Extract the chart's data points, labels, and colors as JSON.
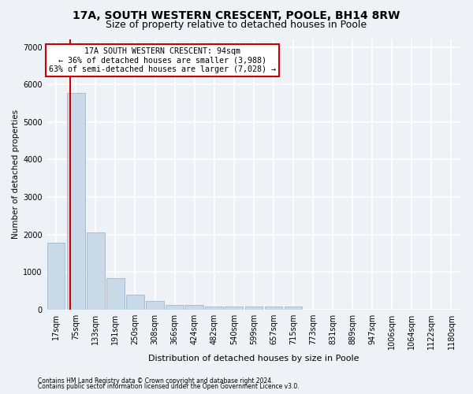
{
  "title1": "17A, SOUTH WESTERN CRESCENT, POOLE, BH14 8RW",
  "title2": "Size of property relative to detached houses in Poole",
  "xlabel": "Distribution of detached houses by size in Poole",
  "ylabel": "Number of detached properties",
  "footnote1": "Contains HM Land Registry data © Crown copyright and database right 2024.",
  "footnote2": "Contains public sector information licensed under the Open Government Licence v3.0.",
  "bar_labels": [
    "17sqm",
    "75sqm",
    "133sqm",
    "191sqm",
    "250sqm",
    "308sqm",
    "366sqm",
    "424sqm",
    "482sqm",
    "540sqm",
    "599sqm",
    "657sqm",
    "715sqm",
    "773sqm",
    "831sqm",
    "889sqm",
    "947sqm",
    "1006sqm",
    "1064sqm",
    "1122sqm",
    "1180sqm"
  ],
  "bar_values": [
    1780,
    5780,
    2060,
    840,
    390,
    220,
    130,
    120,
    85,
    80,
    80,
    80,
    80,
    0,
    0,
    0,
    0,
    0,
    0,
    0,
    0
  ],
  "bar_color": "#c9d9e8",
  "bar_edge_color": "#a0b8cc",
  "vline_color": "#cc0000",
  "annotation_line1": "17A SOUTH WESTERN CRESCENT: 94sqm",
  "annotation_line2": "← 36% of detached houses are smaller (3,988)",
  "annotation_line3": "63% of semi-detached houses are larger (7,028) →",
  "annotation_box_color": "#ffffff",
  "annotation_border_color": "#cc0000",
  "ylim": [
    0,
    7200
  ],
  "yticks": [
    0,
    1000,
    2000,
    3000,
    4000,
    5000,
    6000,
    7000
  ],
  "background_color": "#eef2f7",
  "grid_color": "#ffffff",
  "title1_fontsize": 10,
  "title2_fontsize": 9,
  "xlabel_fontsize": 8,
  "ylabel_fontsize": 7.5,
  "tick_fontsize": 7,
  "footnote_fontsize": 5.5
}
